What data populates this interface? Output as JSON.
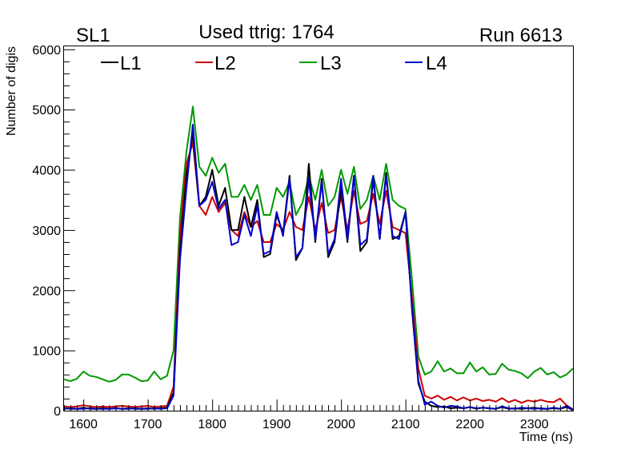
{
  "chart_data": {
    "type": "line",
    "title": "Used ttrig: 1764",
    "left_label": "SL1",
    "right_label": "Run 6613",
    "xlabel": "Time (ns)",
    "ylabel": "Number of digis",
    "xlim": [
      1570,
      2360
    ],
    "ylim": [
      0,
      6050
    ],
    "xticks": [
      1600,
      1700,
      1800,
      1900,
      2000,
      2100,
      2200,
      2300
    ],
    "xtick_labels": [
      "1600",
      "1700",
      "1800",
      "1900",
      "2000",
      "2100",
      "2200",
      "2300"
    ],
    "yticks": [
      0,
      1000,
      2000,
      3000,
      4000,
      5000,
      6000
    ],
    "ytick_labels": [
      "0",
      "1000",
      "2000",
      "3000",
      "4000",
      "5000",
      "6000"
    ],
    "colors": {
      "L1": "#000000",
      "L2": "#cc0000",
      "L3": "#009900",
      "L4": "#0000cc"
    },
    "x": [
      1570,
      1580,
      1590,
      1600,
      1610,
      1620,
      1630,
      1640,
      1650,
      1660,
      1670,
      1680,
      1690,
      1700,
      1710,
      1720,
      1730,
      1740,
      1750,
      1760,
      1770,
      1780,
      1790,
      1800,
      1810,
      1820,
      1830,
      1840,
      1850,
      1860,
      1870,
      1880,
      1890,
      1900,
      1910,
      1920,
      1930,
      1940,
      1950,
      1960,
      1970,
      1980,
      1990,
      2000,
      2010,
      2020,
      2030,
      2040,
      2050,
      2060,
      2070,
      2080,
      2090,
      2100,
      2110,
      2120,
      2130,
      2140,
      2150,
      2160,
      2170,
      2180,
      2190,
      2200,
      2210,
      2220,
      2230,
      2240,
      2250,
      2260,
      2270,
      2280,
      2290,
      2300,
      2310,
      2320,
      2330,
      2340,
      2350,
      2360
    ],
    "series": [
      {
        "name": "L1",
        "values": [
          40,
          30,
          30,
          50,
          30,
          30,
          40,
          30,
          40,
          30,
          40,
          30,
          30,
          40,
          30,
          40,
          50,
          300,
          2600,
          3900,
          4600,
          3400,
          3550,
          4000,
          3400,
          3700,
          3000,
          3000,
          3550,
          3050,
          3500,
          2550,
          2600,
          3250,
          2950,
          3900,
          2500,
          2700,
          4100,
          2800,
          3850,
          2550,
          2800,
          3700,
          2800,
          3900,
          2650,
          2800,
          3850,
          2850,
          3950,
          2850,
          2900,
          3300,
          1700,
          450,
          150,
          80,
          60,
          70,
          40,
          50,
          40,
          60,
          30,
          50,
          40,
          30,
          60,
          30,
          40,
          30,
          40,
          50,
          30,
          30,
          40,
          30,
          60,
          10
        ]
      },
      {
        "name": "L2",
        "values": [
          70,
          60,
          70,
          90,
          70,
          60,
          70,
          60,
          70,
          80,
          70,
          60,
          70,
          80,
          60,
          70,
          80,
          400,
          2900,
          4100,
          4450,
          3400,
          3250,
          3550,
          3300,
          3450,
          3000,
          2900,
          3300,
          3050,
          3150,
          2800,
          2800,
          3100,
          3000,
          3300,
          3050,
          3000,
          3550,
          3000,
          3450,
          2950,
          3000,
          3550,
          3000,
          3650,
          3100,
          3150,
          3600,
          3100,
          3650,
          3050,
          3000,
          2950,
          1900,
          700,
          250,
          200,
          250,
          180,
          230,
          170,
          220,
          170,
          200,
          160,
          180,
          150,
          210,
          140,
          180,
          130,
          170,
          150,
          180,
          150,
          140,
          200,
          90,
          20
        ]
      },
      {
        "name": "L3",
        "values": [
          520,
          490,
          530,
          650,
          580,
          560,
          520,
          480,
          510,
          600,
          600,
          550,
          490,
          500,
          650,
          520,
          580,
          1000,
          3200,
          4300,
          5050,
          4050,
          3900,
          4200,
          3950,
          4100,
          3550,
          3550,
          3750,
          3500,
          3750,
          3250,
          3250,
          3700,
          3550,
          3800,
          3250,
          3450,
          3900,
          3500,
          4000,
          3400,
          3550,
          4000,
          3600,
          4050,
          3350,
          3500,
          3900,
          3500,
          4100,
          3500,
          3400,
          3350,
          2200,
          900,
          600,
          650,
          820,
          650,
          700,
          620,
          620,
          800,
          650,
          720,
          600,
          610,
          780,
          680,
          660,
          620,
          540,
          650,
          710,
          600,
          640,
          550,
          600,
          700
        ]
      },
      {
        "name": "L4",
        "values": [
          30,
          40,
          30,
          30,
          40,
          30,
          30,
          30,
          40,
          30,
          30,
          40,
          30,
          30,
          40,
          30,
          40,
          250,
          2500,
          3700,
          4750,
          3400,
          3500,
          3800,
          3350,
          3500,
          2750,
          2800,
          3250,
          2900,
          3400,
          2600,
          2650,
          3300,
          2900,
          3850,
          2550,
          2700,
          3850,
          2850,
          3800,
          2600,
          2850,
          3850,
          2850,
          3900,
          2750,
          2850,
          3900,
          2850,
          3900,
          2900,
          2850,
          3300,
          1750,
          500,
          100,
          150,
          80,
          50,
          80,
          70,
          40,
          60,
          40,
          50,
          40,
          30,
          70,
          40,
          30,
          50,
          40,
          30,
          40,
          30,
          50,
          30,
          80,
          20
        ]
      }
    ]
  }
}
